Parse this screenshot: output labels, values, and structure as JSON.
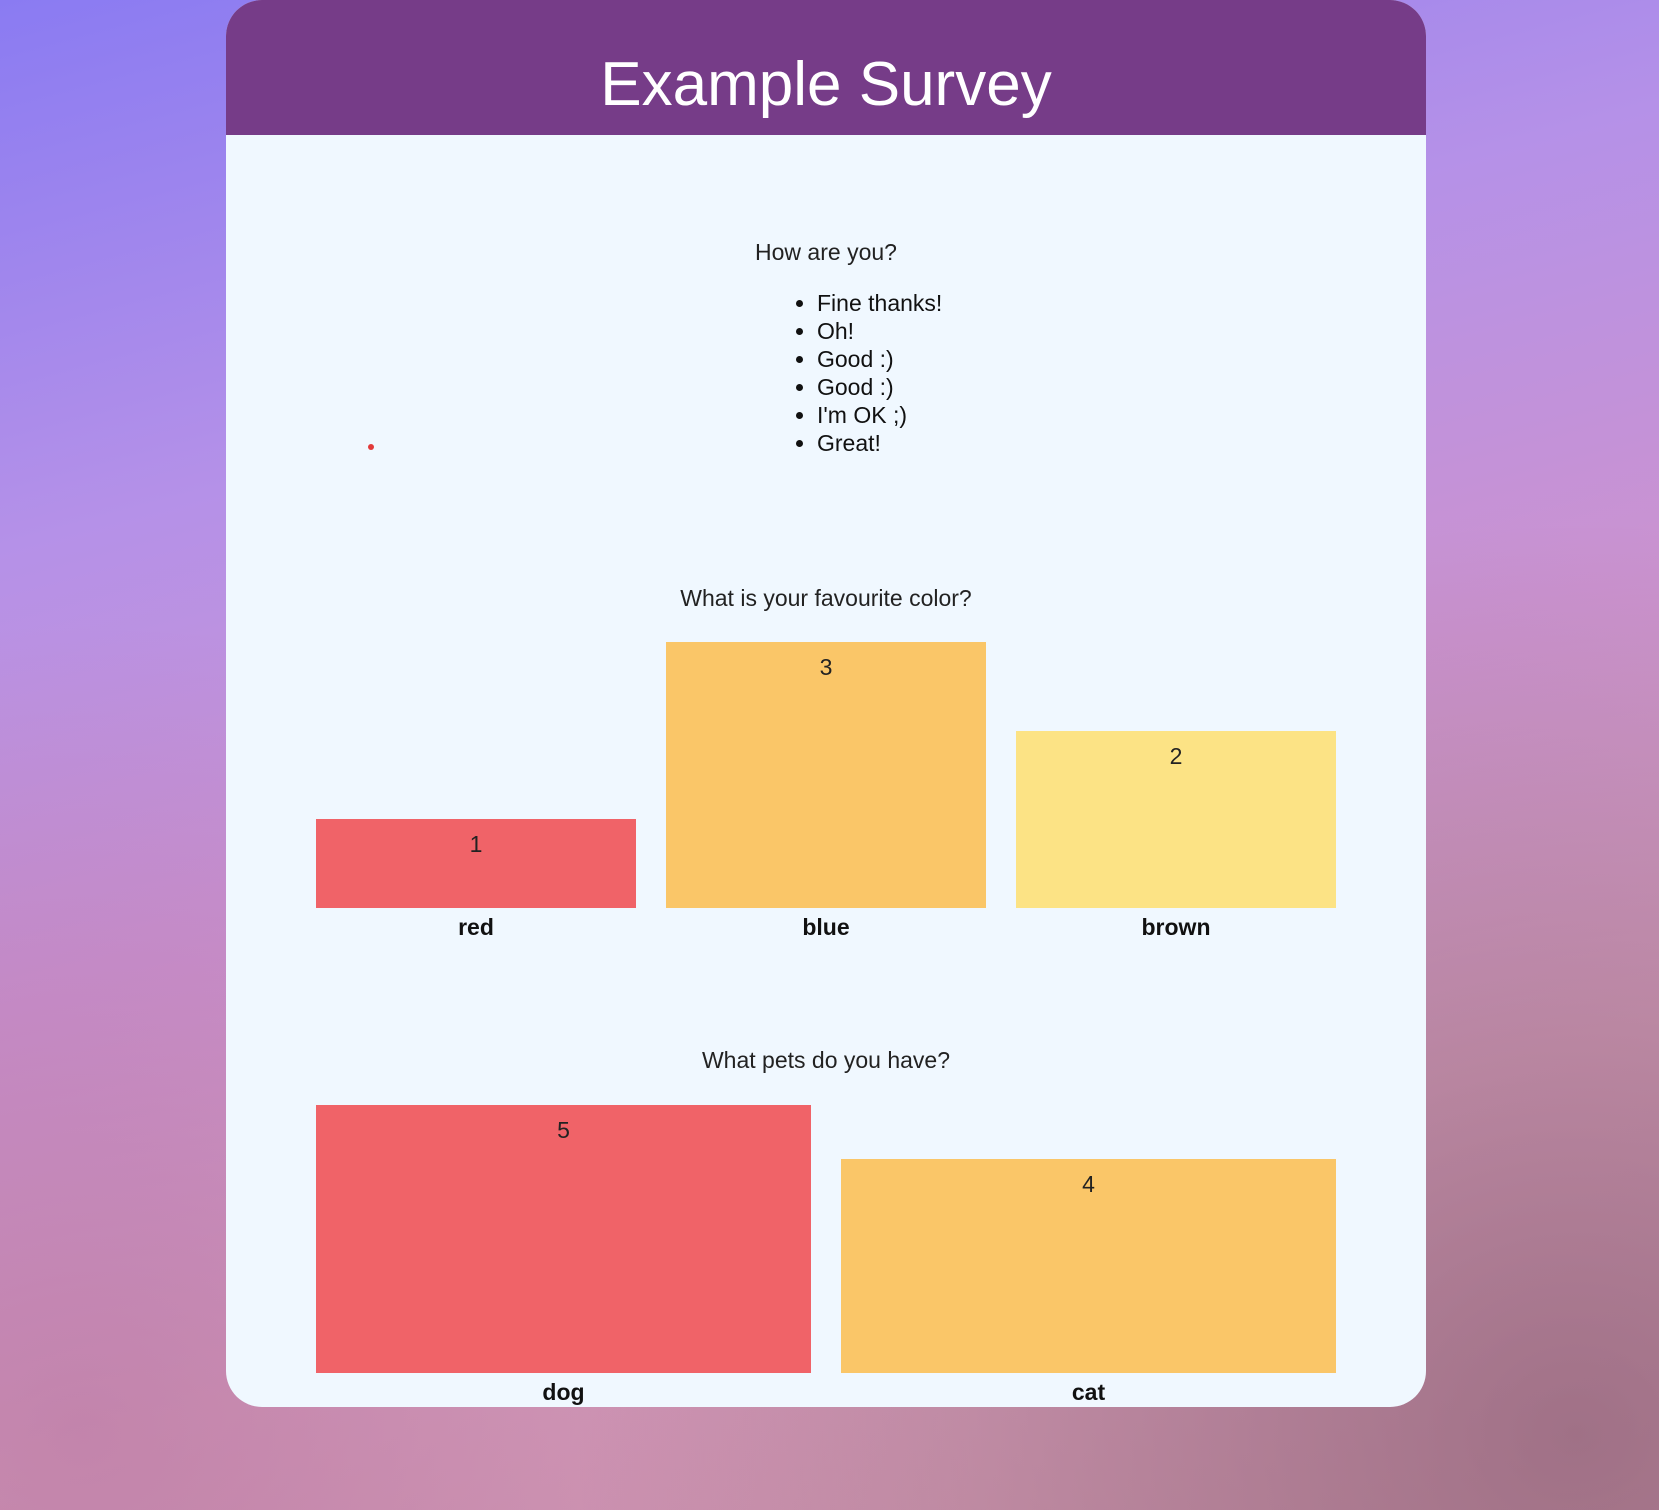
{
  "survey": {
    "title": "Example Survey"
  },
  "questions": [
    {
      "text": "How are you?",
      "type": "list",
      "answers": [
        "Fine thanks!",
        "Oh!",
        "Good :)",
        "Good :)",
        "I'm OK ;)",
        "Great!"
      ]
    },
    {
      "text": "What is your favourite color?",
      "type": "bar"
    },
    {
      "text": "What pets do you have?",
      "type": "bar"
    }
  ],
  "colors": {
    "header_bg": "#763c88",
    "card_bg": "#f0f8ff",
    "bar_palette": [
      "#f06368",
      "#fac668",
      "#fce385"
    ],
    "dot": "#e23a3a"
  },
  "chart_data": [
    {
      "type": "bar",
      "categories": [
        "red",
        "blue",
        "brown"
      ],
      "values": [
        1,
        3,
        2
      ],
      "colors": [
        "#f06368",
        "#fac668",
        "#fce385"
      ],
      "ylim": [
        0,
        3
      ],
      "grid": false
    },
    {
      "type": "bar",
      "categories": [
        "dog",
        "cat"
      ],
      "values": [
        5,
        4
      ],
      "colors": [
        "#f06368",
        "#fac668"
      ],
      "ylim": [
        0,
        5
      ],
      "grid": false
    }
  ]
}
